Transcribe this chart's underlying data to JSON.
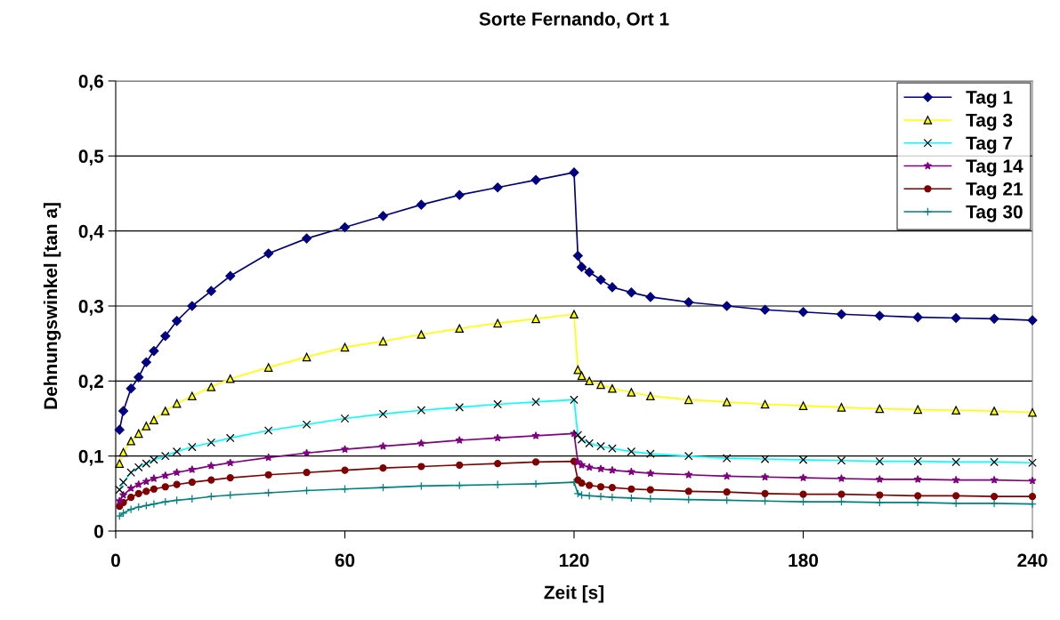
{
  "chart_data": {
    "type": "line",
    "title": "Sorte Fernando, Ort 1",
    "xlabel": "Zeit [s]",
    "ylabel": "Dehnungswinkel [tan a]",
    "x": [
      1,
      2,
      4,
      6,
      8,
      10,
      13,
      16,
      20,
      25,
      30,
      40,
      50,
      60,
      70,
      80,
      90,
      100,
      110,
      120,
      121,
      122,
      124,
      127,
      130,
      135,
      140,
      150,
      160,
      170,
      180,
      190,
      200,
      210,
      220,
      230,
      240
    ],
    "series": [
      {
        "name": "Tag 1",
        "color": "#000080",
        "marker": "diamond",
        "values": [
          0.135,
          0.16,
          0.19,
          0.205,
          0.225,
          0.24,
          0.26,
          0.28,
          0.3,
          0.32,
          0.34,
          0.37,
          0.39,
          0.405,
          0.42,
          0.435,
          0.448,
          0.458,
          0.468,
          0.478,
          0.367,
          0.352,
          0.345,
          0.335,
          0.325,
          0.318,
          0.312,
          0.305,
          0.3,
          0.295,
          0.292,
          0.289,
          0.287,
          0.285,
          0.284,
          0.283,
          0.281
        ]
      },
      {
        "name": "Tag 3",
        "color": "#ffff00",
        "marker": "triangle",
        "values": [
          0.09,
          0.105,
          0.12,
          0.13,
          0.14,
          0.148,
          0.16,
          0.17,
          0.18,
          0.192,
          0.203,
          0.218,
          0.232,
          0.245,
          0.253,
          0.262,
          0.27,
          0.277,
          0.283,
          0.289,
          0.215,
          0.207,
          0.2,
          0.195,
          0.19,
          0.185,
          0.18,
          0.175,
          0.172,
          0.169,
          0.167,
          0.165,
          0.163,
          0.162,
          0.161,
          0.16,
          0.158
        ]
      },
      {
        "name": "Tag 7",
        "color": "#00ffff",
        "marker": "cross",
        "values": [
          0.055,
          0.065,
          0.078,
          0.085,
          0.09,
          0.095,
          0.1,
          0.106,
          0.112,
          0.118,
          0.124,
          0.134,
          0.142,
          0.15,
          0.156,
          0.161,
          0.165,
          0.169,
          0.172,
          0.175,
          0.128,
          0.122,
          0.117,
          0.113,
          0.11,
          0.106,
          0.103,
          0.1,
          0.097,
          0.096,
          0.095,
          0.094,
          0.093,
          0.093,
          0.092,
          0.092,
          0.091
        ]
      },
      {
        "name": "Tag 14",
        "color": "#800080",
        "marker": "star",
        "values": [
          0.04,
          0.048,
          0.057,
          0.062,
          0.066,
          0.07,
          0.074,
          0.078,
          0.082,
          0.087,
          0.091,
          0.098,
          0.104,
          0.109,
          0.113,
          0.117,
          0.121,
          0.124,
          0.127,
          0.13,
          0.092,
          0.088,
          0.085,
          0.083,
          0.081,
          0.079,
          0.077,
          0.075,
          0.073,
          0.072,
          0.071,
          0.07,
          0.069,
          0.069,
          0.068,
          0.068,
          0.067
        ]
      },
      {
        "name": "Tag 21",
        "color": "#800000",
        "marker": "circle",
        "values": [
          0.033,
          0.038,
          0.045,
          0.05,
          0.053,
          0.056,
          0.059,
          0.062,
          0.065,
          0.068,
          0.071,
          0.075,
          0.078,
          0.081,
          0.084,
          0.086,
          0.088,
          0.09,
          0.092,
          0.093,
          0.068,
          0.064,
          0.061,
          0.059,
          0.058,
          0.056,
          0.055,
          0.053,
          0.052,
          0.05,
          0.049,
          0.049,
          0.048,
          0.047,
          0.047,
          0.046,
          0.046
        ]
      },
      {
        "name": "Tag 30",
        "color": "#008080",
        "marker": "plus",
        "values": [
          0.02,
          0.024,
          0.029,
          0.032,
          0.034,
          0.036,
          0.039,
          0.041,
          0.043,
          0.046,
          0.048,
          0.051,
          0.054,
          0.056,
          0.058,
          0.06,
          0.061,
          0.062,
          0.063,
          0.065,
          0.05,
          0.048,
          0.047,
          0.046,
          0.045,
          0.044,
          0.043,
          0.042,
          0.041,
          0.04,
          0.039,
          0.039,
          0.038,
          0.038,
          0.037,
          0.037,
          0.036
        ]
      }
    ],
    "xlim": [
      0,
      240
    ],
    "xticks": [
      0,
      60,
      120,
      180,
      240
    ],
    "ylim": [
      0,
      0.6
    ],
    "yticks": [
      0,
      {
        "value": 0.1,
        "label": "0,1"
      },
      {
        "value": 0.2,
        "label": "0,2"
      },
      {
        "value": 0.3,
        "label": "0,3"
      },
      {
        "value": 0.4,
        "label": "0,4"
      },
      {
        "value": 0.5,
        "label": "0,5"
      },
      {
        "value": 0.6,
        "label": "0,6"
      }
    ],
    "grid": "y",
    "legend": "top right",
    "line_style": "solid"
  }
}
